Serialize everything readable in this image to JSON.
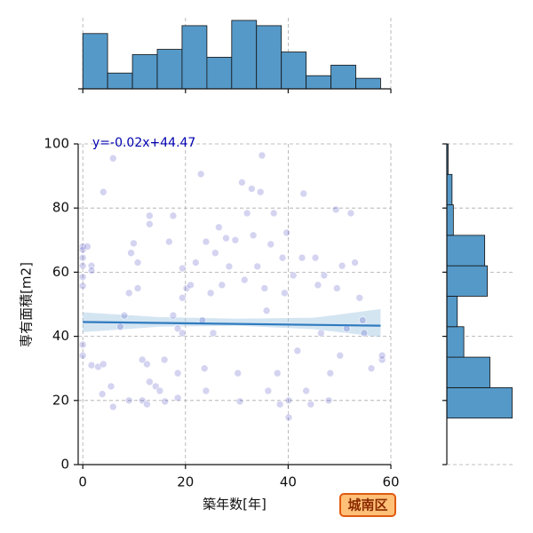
{
  "chart_data": [
    {
      "type": "scatter",
      "xlabel": "築年数[年]",
      "ylabel": "専有面積[m2]",
      "annotation": "y=-0.02x+44.47",
      "badge": "城南区",
      "color": "#2a2ab8",
      "alpha": 0.2,
      "grid": true,
      "xlim": [
        -0.9,
        60
      ],
      "xticks": [
        0,
        20,
        40,
        60
      ],
      "ylim": [
        0,
        100
      ],
      "yticks": [
        0,
        20,
        40,
        60,
        80,
        100
      ],
      "x": [
        0,
        0,
        0,
        0,
        0,
        0,
        0.9,
        1.7,
        1.7,
        5.9,
        4,
        0,
        0,
        1.7,
        3,
        4,
        5.5,
        5.9,
        3.8,
        7.3,
        8.1,
        9,
        9.4,
        9.9,
        10.7,
        10.7,
        11.6,
        12.5,
        13,
        13,
        13,
        9,
        11.6,
        14.2,
        15,
        15.9,
        16,
        16.8,
        17.6,
        17.6,
        18.5,
        18.5,
        18.5,
        19.4,
        19.4,
        19.4,
        20.2,
        21,
        22,
        23,
        23.3,
        23.7,
        24,
        24,
        24.9,
        25.4,
        25.8,
        26.5,
        27.1,
        27.9,
        28.5,
        29.7,
        30.2,
        30.6,
        31,
        31.5,
        32,
        32.9,
        33.2,
        34,
        34.9,
        34.6,
        35.4,
        35.8,
        36.1,
        36.6,
        37.2,
        37.9,
        38.4,
        38.9,
        39.3,
        39.7,
        40.1,
        40.1,
        41,
        41.8,
        42.7,
        43,
        43.5,
        44.4,
        45.3,
        45.8,
        46.4,
        47,
        47.9,
        48.2,
        49.3,
        49.5,
        50.1,
        50.5,
        51.4,
        52.2,
        53,
        53.9,
        54.5,
        54.8,
        56.2,
        58.3,
        58.3,
        12.5
      ],
      "values": [
        68,
        67,
        64.5,
        62,
        58.5,
        55.7,
        68,
        62,
        60.5,
        95.5,
        85,
        37.4,
        34,
        31,
        30.5,
        31.3,
        24.4,
        18,
        22,
        43,
        46.5,
        53.5,
        66,
        69,
        63,
        55,
        32.7,
        31.3,
        25.8,
        77.6,
        75,
        20,
        20,
        24.4,
        23,
        32.7,
        19.7,
        69.5,
        77.6,
        46.5,
        42.4,
        28.5,
        20.8,
        41,
        61.2,
        52,
        55,
        56,
        63,
        90.6,
        45,
        30,
        23,
        69.5,
        53.5,
        41,
        66,
        74,
        56,
        70.6,
        61.8,
        70,
        28.5,
        19.7,
        88,
        57.6,
        78.4,
        86,
        71.5,
        61.8,
        96.4,
        85,
        55,
        48,
        23,
        68.7,
        78.4,
        28.5,
        18.8,
        64.5,
        53.5,
        72.3,
        14.7,
        20,
        59,
        35.5,
        64.5,
        84.5,
        23,
        18.8,
        64.5,
        56,
        41,
        59,
        20,
        28.5,
        79.5,
        55,
        34,
        62,
        42.4,
        78.4,
        63,
        52,
        45,
        41,
        30,
        32.7,
        34,
        18.8
      ],
      "regression": {
        "color": "#2f7bbf",
        "x": [
          0,
          58
        ],
        "values": [
          44.47,
          43.31
        ]
      },
      "band": {
        "color": "#a9cbe6",
        "x": [
          0,
          15,
          30,
          45,
          58
        ],
        "lower": [
          41.3,
          43,
          43.3,
          42.2,
          39.8
        ],
        "upper": [
          47.5,
          46,
          45.5,
          45.8,
          48.5
        ]
      }
    },
    {
      "type": "histogram",
      "orientation": "vertical",
      "color": "#5599c8",
      "bins": [
        0,
        4.83,
        9.67,
        14.5,
        19.33,
        24.17,
        29,
        33.83,
        38.67,
        43.5,
        48.33,
        53.17,
        58
      ],
      "values": [
        21,
        6,
        13,
        15,
        24,
        12,
        26,
        24,
        14,
        5,
        9,
        4
      ],
      "ylim": [
        0,
        27
      ]
    },
    {
      "type": "histogram",
      "orientation": "horizontal",
      "color": "#5599c8",
      "bins": [
        14.5,
        24,
        33.5,
        43,
        52.5,
        62,
        71.5,
        81,
        90.5,
        100
      ],
      "values": [
        50,
        33,
        13,
        8,
        31,
        29,
        5,
        4,
        1
      ],
      "xlim": [
        0,
        51
      ]
    }
  ]
}
